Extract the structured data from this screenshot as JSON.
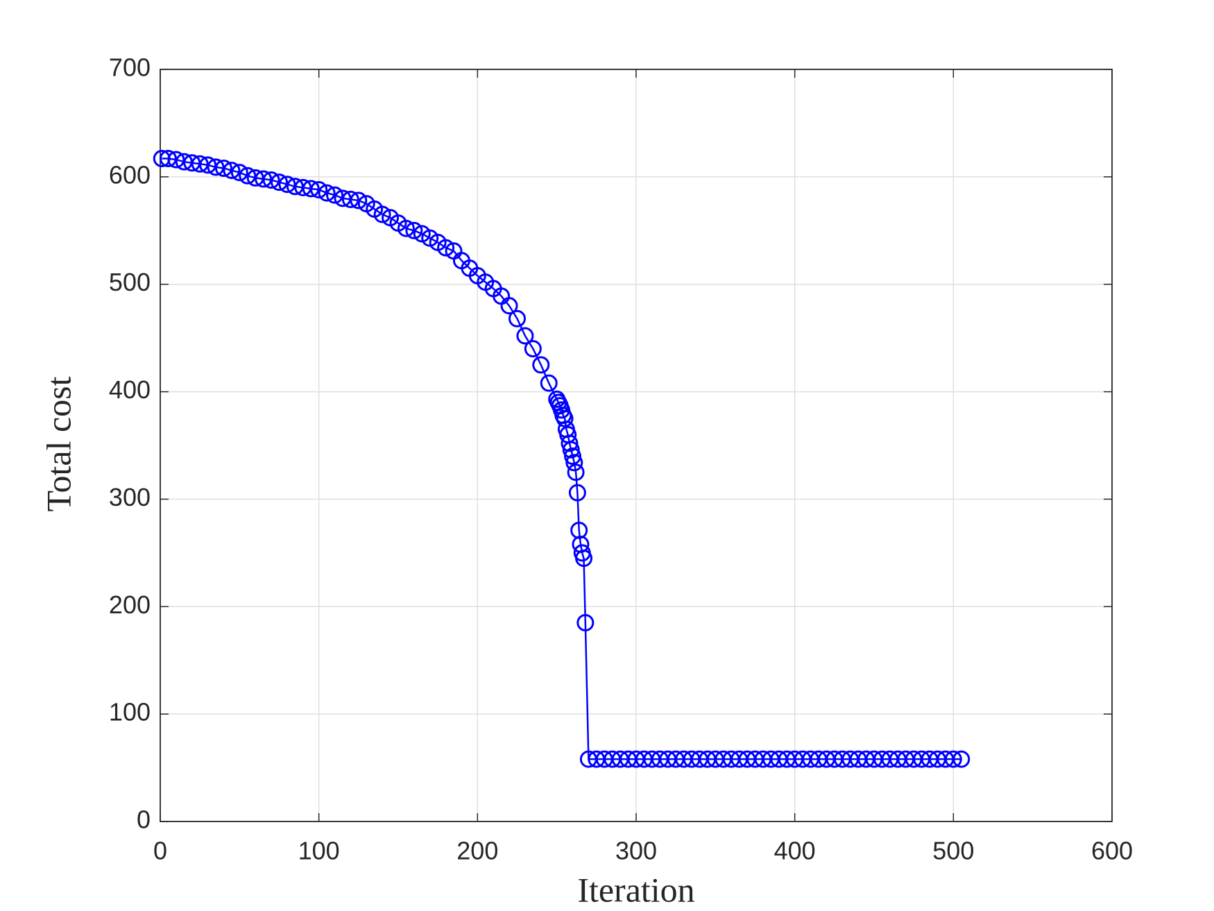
{
  "chart_data": {
    "type": "line",
    "xlabel": "Iteration",
    "ylabel": "Total cost",
    "xlim": [
      0,
      600
    ],
    "ylim": [
      0,
      700
    ],
    "xticks": [
      0,
      100,
      200,
      300,
      400,
      500,
      600
    ],
    "yticks": [
      0,
      100,
      200,
      300,
      400,
      500,
      600,
      700
    ],
    "grid": true,
    "series": [
      {
        "color": "#0000ff",
        "marker": "circle",
        "x": [
          1,
          5,
          10,
          15,
          20,
          25,
          30,
          35,
          40,
          45,
          50,
          55,
          60,
          65,
          70,
          75,
          80,
          85,
          90,
          95,
          100,
          105,
          110,
          115,
          120,
          125,
          130,
          135,
          140,
          145,
          150,
          155,
          160,
          165,
          170,
          175,
          180,
          185,
          190,
          195,
          200,
          205,
          210,
          215,
          220,
          225,
          230,
          235,
          240,
          245,
          250,
          251,
          252,
          253,
          254,
          255,
          256,
          257,
          258,
          259,
          260,
          261,
          262,
          263,
          264,
          265,
          266,
          267,
          268,
          270,
          275,
          280,
          285,
          290,
          295,
          300,
          305,
          310,
          315,
          320,
          325,
          330,
          335,
          340,
          345,
          350,
          355,
          360,
          365,
          370,
          375,
          380,
          385,
          390,
          395,
          400,
          405,
          410,
          415,
          420,
          425,
          430,
          435,
          440,
          445,
          450,
          455,
          460,
          465,
          470,
          475,
          480,
          485,
          490,
          495,
          500,
          505
        ],
        "values": [
          617,
          617,
          616,
          614,
          613,
          612,
          611,
          609,
          608,
          606,
          604,
          601,
          599,
          598,
          597,
          595,
          593,
          591,
          590,
          589,
          588,
          585,
          583,
          580,
          579,
          578,
          575,
          570,
          565,
          562,
          557,
          552,
          550,
          547,
          543,
          539,
          534,
          531,
          522,
          515,
          508,
          502,
          496,
          489,
          480,
          468,
          452,
          440,
          425,
          408,
          393,
          390,
          387,
          383,
          378,
          375,
          365,
          360,
          352,
          346,
          340,
          334,
          325,
          306,
          271,
          258,
          250,
          245,
          185,
          58,
          58,
          58,
          58,
          58,
          58,
          58,
          58,
          58,
          58,
          58,
          58,
          58,
          58,
          58,
          58,
          58,
          58,
          58,
          58,
          58,
          58,
          58,
          58,
          58,
          58,
          58,
          58,
          58,
          58,
          58,
          58,
          58,
          58,
          58,
          58,
          58,
          58,
          58,
          58,
          58,
          58,
          58,
          58,
          58,
          58,
          58,
          58
        ]
      }
    ]
  }
}
